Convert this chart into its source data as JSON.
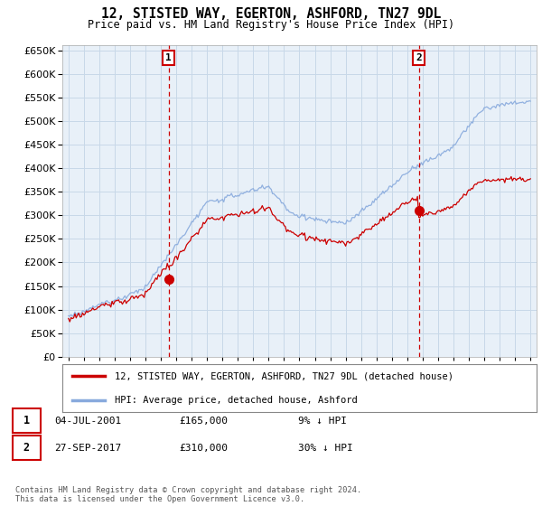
{
  "title": "12, STISTED WAY, EGERTON, ASHFORD, TN27 9DL",
  "subtitle": "Price paid vs. HM Land Registry's House Price Index (HPI)",
  "legend_line1": "12, STISTED WAY, EGERTON, ASHFORD, TN27 9DL (detached house)",
  "legend_line2": "HPI: Average price, detached house, Ashford",
  "transaction1_label": "1",
  "transaction1_date": "04-JUL-2001",
  "transaction1_price": "£165,000",
  "transaction1_info": "9% ↓ HPI",
  "transaction2_label": "2",
  "transaction2_date": "27-SEP-2017",
  "transaction2_price": "£310,000",
  "transaction2_info": "30% ↓ HPI",
  "footer": "Contains HM Land Registry data © Crown copyright and database right 2024.\nThis data is licensed under the Open Government Licence v3.0.",
  "sale_color": "#cc0000",
  "hpi_color": "#88aadd",
  "marker1_x": 2001.5,
  "marker1_y": 165000,
  "marker2_x": 2017.75,
  "marker2_y": 310000,
  "ylim": [
    0,
    660000
  ],
  "xlim_start": 1994.6,
  "xlim_end": 2025.4,
  "plot_bg_color": "#e8f0f8",
  "background_color": "#ffffff",
  "grid_color": "#c8d8e8"
}
